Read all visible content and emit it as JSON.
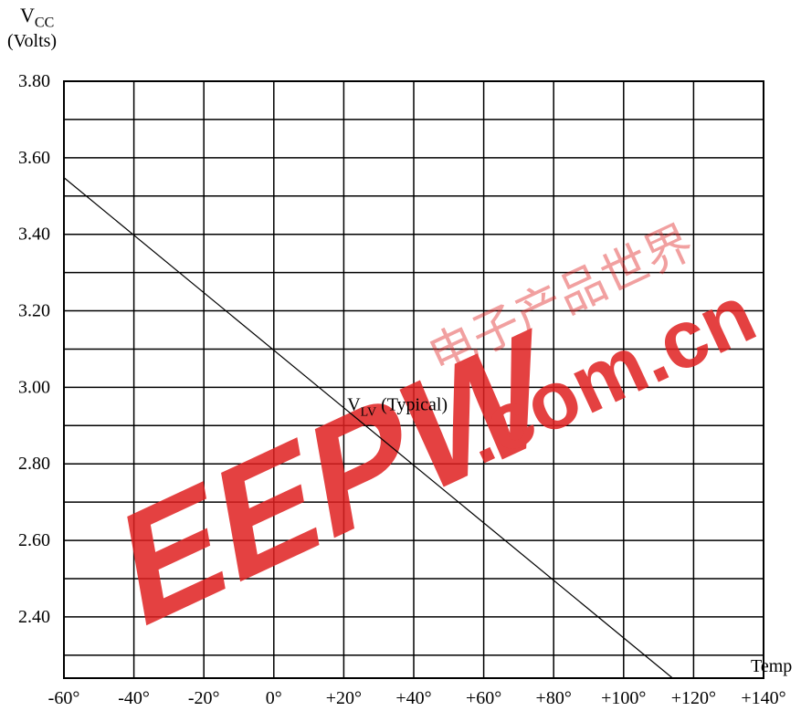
{
  "chart_data": {
    "type": "line",
    "ylabel_main": "V",
    "ylabel_sub": "CC",
    "ylabel_unit": "(Volts)",
    "xlabel": "Temp",
    "xlim": [
      -60,
      140
    ],
    "ylim": [
      2.24,
      3.8
    ],
    "x_ticks": [
      "-60°",
      "-40°",
      "-20°",
      "0°",
      "+20°",
      "+40°",
      "+60°",
      "+80°",
      "+100°",
      "+120°",
      "+140°"
    ],
    "y_ticks": [
      "3.80",
      "3.60",
      "3.40",
      "3.20",
      "3.00",
      "2.80",
      "2.60",
      "2.40"
    ],
    "y_tick_values": [
      3.8,
      3.6,
      3.4,
      3.2,
      3.0,
      2.8,
      2.6,
      2.4
    ],
    "grid": true,
    "series": [
      {
        "label_main": "V",
        "label_sub": "LV",
        "label_rest": " (Typical)",
        "x": [
          -60,
          114
        ],
        "y": [
          3.548,
          2.24
        ]
      }
    ],
    "annotation_point": [
      21,
      2.94
    ]
  },
  "watermark": {
    "text": "EEPW",
    "domain": ".com.cn",
    "cjk": "电子产品世界",
    "color": "#e02020"
  }
}
